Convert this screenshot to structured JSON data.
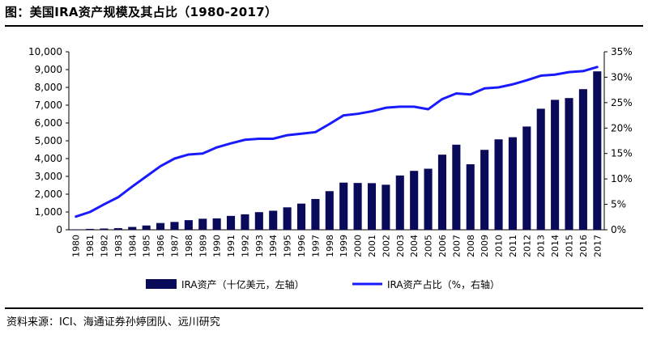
{
  "title": "图：美国IRA资产规模及其占比（1980-2017）",
  "source": "资料来源：ICI、海通证券孙婷团队、远川研究",
  "chart_data": {
    "type": "bar",
    "categories": [
      "1980",
      "1981",
      "1982",
      "1983",
      "1984",
      "1985",
      "1986",
      "1987",
      "1988",
      "1989",
      "1990",
      "1991",
      "1992",
      "1993",
      "1994",
      "1995",
      "1996",
      "1997",
      "1998",
      "1999",
      "2000",
      "2001",
      "2002",
      "2003",
      "2004",
      "2005",
      "2006",
      "2007",
      "2008",
      "2009",
      "2010",
      "2011",
      "2012",
      "2013",
      "2014",
      "2015",
      "2016",
      "2017"
    ],
    "series": [
      {
        "name": "IRA资产（十亿美元，左轴）",
        "type": "bar",
        "axis": "left",
        "color": "#0a0a5a",
        "values": [
          25,
          50,
          70,
          90,
          160,
          240,
          380,
          440,
          540,
          620,
          640,
          780,
          870,
          990,
          1070,
          1260,
          1470,
          1730,
          2170,
          2650,
          2630,
          2620,
          2530,
          3050,
          3310,
          3430,
          4220,
          4780,
          3680,
          4490,
          5080,
          5200,
          5800,
          6800,
          7300,
          7400,
          7900,
          8900
        ]
      },
      {
        "name": "IRA资产占比（%，右轴）",
        "type": "line",
        "axis": "right",
        "color": "#1a1aff",
        "values": [
          2.6,
          3.5,
          5.0,
          6.4,
          8.5,
          10.5,
          12.5,
          14.0,
          14.8,
          15.0,
          16.2,
          17.0,
          17.7,
          17.9,
          17.9,
          18.6,
          18.9,
          19.2,
          20.8,
          22.5,
          22.8,
          23.3,
          24.0,
          24.2,
          24.2,
          23.7,
          25.7,
          26.8,
          26.6,
          27.8,
          28.0,
          28.6,
          29.4,
          30.3,
          30.5,
          31.0,
          31.2,
          32.0
        ]
      }
    ],
    "yleft": {
      "lim": [
        0,
        10000
      ],
      "ticks": [
        "0",
        "1,000",
        "2,000",
        "3,000",
        "4,000",
        "5,000",
        "6,000",
        "7,000",
        "8,000",
        "9,000",
        "10,000"
      ]
    },
    "yright": {
      "lim": [
        0,
        35
      ],
      "ticks": [
        "0%",
        "5%",
        "10%",
        "15%",
        "20%",
        "25%",
        "30%",
        "35%"
      ]
    },
    "grid": false,
    "legend_position": "bottom"
  }
}
